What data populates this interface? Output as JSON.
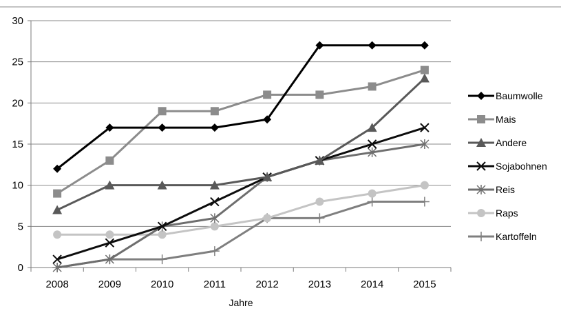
{
  "chart_data": {
    "type": "line",
    "title": "",
    "xlabel": "Jahre",
    "ylabel": "",
    "x": [
      "2008",
      "2009",
      "2010",
      "2011",
      "2012",
      "2013",
      "2014",
      "2015"
    ],
    "ylim": [
      0,
      30
    ],
    "yticks": [
      0,
      5,
      10,
      15,
      20,
      25,
      30
    ],
    "grid": "horizontal",
    "legend_position": "right",
    "series": [
      {
        "name": "Baumwolle",
        "values": [
          12,
          17,
          17,
          17,
          18,
          27,
          27,
          27
        ],
        "color": "#000000",
        "marker": "diamond"
      },
      {
        "name": "Mais",
        "values": [
          9,
          13,
          19,
          19,
          21,
          21,
          22,
          24
        ],
        "color": "#8c8c8c",
        "marker": "square"
      },
      {
        "name": "Andere",
        "values": [
          7,
          10,
          10,
          10,
          11,
          13,
          17,
          23
        ],
        "color": "#595959",
        "marker": "triangle"
      },
      {
        "name": "Sojabohnen",
        "values": [
          1,
          3,
          5,
          8,
          11,
          13,
          15,
          17
        ],
        "color": "#0d0d0d",
        "marker": "x"
      },
      {
        "name": "Reis",
        "values": [
          0,
          1,
          5,
          6,
          11,
          13,
          14,
          15
        ],
        "color": "#6e6e6e",
        "marker": "star"
      },
      {
        "name": "Raps",
        "values": [
          4,
          4,
          4,
          5,
          6,
          8,
          9,
          10
        ],
        "color": "#c4c4c4",
        "marker": "circle"
      },
      {
        "name": "Kartoffeln",
        "values": [
          0,
          1,
          1,
          2,
          6,
          6,
          8,
          8
        ],
        "color": "#7f7f7f",
        "marker": "plus"
      }
    ]
  }
}
